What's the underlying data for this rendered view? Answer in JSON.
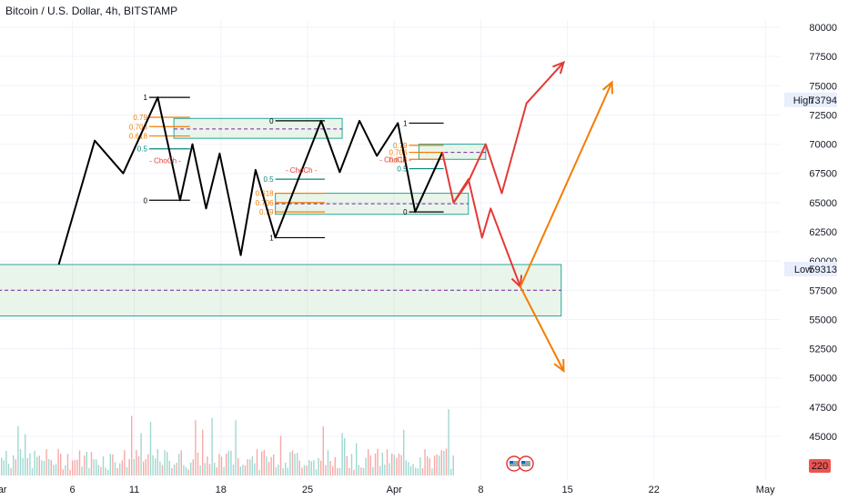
{
  "chart_data": {
    "type": "line",
    "title": "Bitcoin / U.S. Dollar, 4h, BITSTAMP",
    "y_axis": {
      "ticks": [
        45000,
        47500,
        50000,
        52500,
        55000,
        57500,
        60000,
        62500,
        65000,
        67500,
        70000,
        72500,
        75000,
        77500,
        80000
      ],
      "ylim": [
        43000,
        81500
      ],
      "position": "right"
    },
    "x_axis": {
      "ticks": [
        {
          "label": "Mar",
          "day": 0
        },
        {
          "label": "6",
          "day": 6
        },
        {
          "label": "11",
          "day": 11
        },
        {
          "label": "18",
          "day": 18
        },
        {
          "label": "25",
          "day": 25
        },
        {
          "label": "Apr",
          "day": 32
        },
        {
          "label": "8",
          "day": 39
        },
        {
          "label": "15",
          "day": 46
        },
        {
          "label": "22",
          "day": 53
        },
        {
          "label": "May",
          "day": 62
        }
      ],
      "xlim": [
        0,
        64
      ]
    },
    "price_markers": [
      {
        "label": "High",
        "value": 73794
      },
      {
        "label": "Low",
        "value": 59313
      }
    ],
    "volume_badge": {
      "value": "220",
      "color": "#ef5350"
    },
    "series": [
      {
        "color": "#000000",
        "points": [
          [
            4.9,
            59700
          ],
          [
            7.8,
            70300
          ],
          [
            10.1,
            67500
          ],
          [
            12.9,
            74000
          ],
          [
            14.7,
            65200
          ],
          [
            15.7,
            70000
          ],
          [
            16.8,
            64500
          ],
          [
            17.9,
            69200
          ],
          [
            19.6,
            60500
          ],
          [
            20.8,
            67800
          ],
          [
            22.4,
            62000
          ],
          [
            26.1,
            72000
          ],
          [
            27.6,
            67600
          ],
          [
            29.2,
            72000
          ],
          [
            30.6,
            69000
          ],
          [
            32.3,
            71800
          ],
          [
            33.7,
            64200
          ],
          [
            35.9,
            69300
          ]
        ]
      },
      {
        "color": "#e53935",
        "points": [
          [
            35.9,
            69300
          ],
          [
            36.8,
            65000
          ],
          [
            38.0,
            66800
          ],
          [
            39.4,
            70000
          ],
          [
            40.7,
            65800
          ],
          [
            42.7,
            73500
          ],
          [
            45.7,
            77000
          ]
        ]
      },
      {
        "color": "#e53935",
        "points": [
          [
            36.8,
            65000
          ],
          [
            38.0,
            67000
          ],
          [
            39.1,
            62000
          ],
          [
            39.8,
            64500
          ],
          [
            42.2,
            57800
          ]
        ]
      },
      {
        "color": "#f57c00",
        "points": [
          [
            42.2,
            57800
          ],
          [
            49.6,
            75300
          ]
        ]
      },
      {
        "color": "#f57c00",
        "points": [
          [
            42.2,
            57800
          ],
          [
            45.7,
            50600
          ]
        ]
      }
    ],
    "zones": [
      {
        "x": [
          0,
          45.5
        ],
        "y": [
          55300,
          59700
        ],
        "midline": 57500
      },
      {
        "x": [
          14.2,
          27.8
        ],
        "y": [
          70500,
          72200
        ],
        "midline": 71300
      },
      {
        "x": [
          22.4,
          38.0
        ],
        "y": [
          64000,
          65800
        ],
        "midline": 64900
      },
      {
        "x": [
          34.0,
          39.4
        ],
        "y": [
          68700,
          70000
        ],
        "midline": 69300
      }
    ],
    "fib_levels": [
      {
        "label": "1",
        "value": 74000,
        "color": "#000000"
      },
      {
        "label": "0.79",
        "value": 72300,
        "color": "#f57c00"
      },
      {
        "label": "0.706",
        "value": 71500,
        "color": "#f57c00"
      },
      {
        "label": "0.618",
        "value": 70700,
        "color": "#f57c00"
      },
      {
        "label": "0.5",
        "value": 69600,
        "color": "#00897b"
      },
      {
        "label": "0",
        "value": 65200,
        "color": "#000000"
      },
      {
        "label": "0",
        "value": 72000,
        "color": "#000000"
      },
      {
        "label": "0.5",
        "value": 67000,
        "color": "#00897b"
      },
      {
        "label": "0.618",
        "value": 65800,
        "color": "#f57c00"
      },
      {
        "label": "0.706",
        "value": 65000,
        "color": "#f57c00"
      },
      {
        "label": "0.79",
        "value": 64200,
        "color": "#f57c00"
      },
      {
        "label": "1",
        "value": 62000,
        "color": "#000000"
      },
      {
        "label": "1",
        "value": 71800,
        "color": "#000000"
      },
      {
        "label": "0.79",
        "value": 69900,
        "color": "#f57c00"
      },
      {
        "label": "0.706",
        "value": 69300,
        "color": "#f57c00"
      },
      {
        "label": "0.618",
        "value": 68700,
        "color": "#f57c00"
      },
      {
        "label": "0.5",
        "value": 67900,
        "color": "#00897b"
      },
      {
        "label": "0",
        "value": 64200,
        "color": "#000000"
      }
    ],
    "annotations": [
      {
        "text": "ChoCh",
        "day": 13.5,
        "value": 68600,
        "color": "#e53935"
      },
      {
        "text": "ChoCh",
        "day": 24.5,
        "value": 67800,
        "color": "#e53935"
      },
      {
        "text": "ChoCh",
        "day": 32.1,
        "value": 68700,
        "color": "#e53935"
      }
    ],
    "grid": true,
    "legend": "none"
  }
}
